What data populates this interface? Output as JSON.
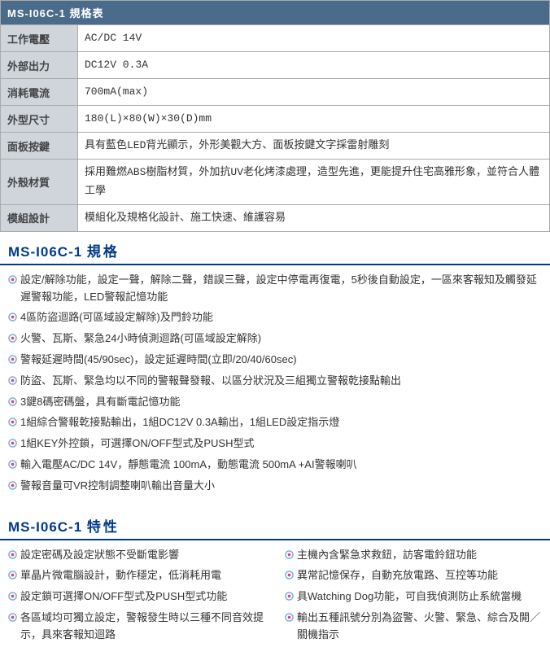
{
  "table": {
    "title": "MS-I06C-1 規格表",
    "rows": [
      {
        "label": "工作電壓",
        "value": "AC/DC 14V"
      },
      {
        "label": "外部出力",
        "value": "DC12V 0.3A"
      },
      {
        "label": "消耗電流",
        "value": "700mA(max)"
      },
      {
        "label": "外型尺寸",
        "value": "180(L)×80(W)×30(D)mm"
      },
      {
        "label": "面板按鍵",
        "value": "具有藍色LED背光顯示，外形美觀大方、面板按鍵文字採雷射雕刻"
      },
      {
        "label": "外殼材質",
        "value": "採用難燃ABS樹脂材質，外加抗UV老化烤漆處理，造型先進，更能提升住宅高雅形象，並符合人體工學"
      },
      {
        "label": "模組設計",
        "value": "模組化及規格化設計、施工快速、維護容易"
      }
    ]
  },
  "specs": {
    "title_prefix": "MS-I06C-1",
    "title_suffix": "規格",
    "items": [
      "設定/解除功能，設定一聲，解除二聲，錯誤三聲，設定中停電再復電，5秒後自動設定，一區來客報知及觸發延遲警報功能，LED警報記憶功能",
      "4區防盜迴路(可區域設定解除)及門鈴功能",
      "火警、瓦斯、緊急24小時偵測迴路(可區域設定解除)",
      "警報延遲時間(45/90sec)，設定延遲時間(立即/20/40/60sec)",
      "防盜、瓦斯、緊急均以不同的警報聲發報、以區分狀況及三組獨立警報乾接點輸出",
      "3鍵8碼密碼盤，具有斷電記憶功能",
      "1組綜合警報乾接點輸出，1組DC12V 0.3A輸出，1組LED設定指示燈",
      "1組KEY外控鎖，可選擇ON/OFF型式及PUSH型式",
      "輸入電壓AC/DC 14V，靜態電流 100mA，動態電流 500mA +AI警報喇叭",
      "警報音量可VR控制調整喇叭輸出音量大小"
    ]
  },
  "features": {
    "title_prefix": "MS-I06C-1",
    "title_suffix": "特性",
    "left": [
      "設定密碼及設定狀態不受斷電影響",
      "單晶片微電腦設計，動作穩定，低消耗用電",
      "設定鎖可選擇ON/OFF型式及PUSH型式功能",
      "各區域均可獨立設定，警報發生時以三種不同音效提示，具來客報知迴路"
    ],
    "right": [
      "主機內含緊急求救鈕，訪客電鈴鈕功能",
      "異常記憶保存，自動充放電路、互控等功能",
      "具Watching Dog功能，可自我偵測防止系統當機",
      "輸出五種訊號分別為盜警、火警、緊急、綜合及開／關機指示"
    ]
  },
  "colors": {
    "header_bg": "#4a6b8a",
    "label_bg": "#d0d5dc",
    "accent": "#003a8c",
    "bullet_outer": "#7aa3d0",
    "bullet_inner": "#c94f8f"
  }
}
